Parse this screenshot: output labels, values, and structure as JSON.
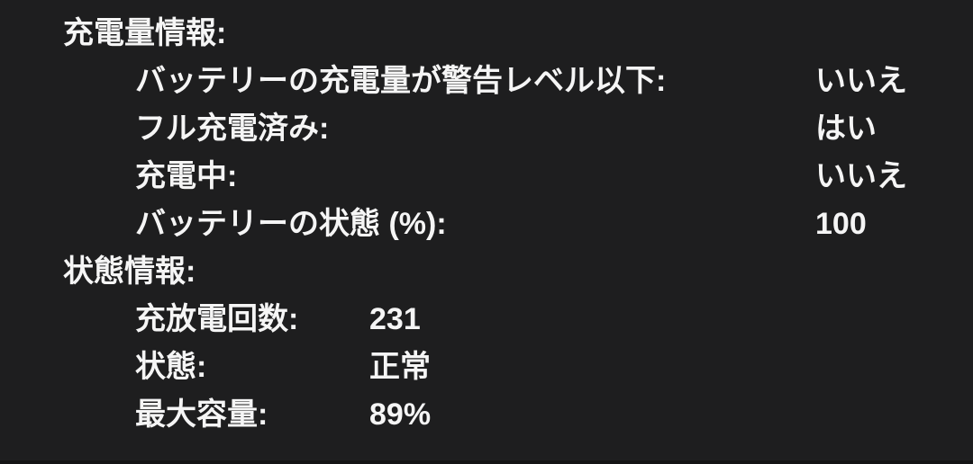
{
  "panel": {
    "bg_color": "#1e1e1f",
    "text_color": "#f5f5f5"
  },
  "sections": [
    {
      "title": "充電量情報:",
      "rows": [
        {
          "label": "バッテリーの充電量が警告レベル以下:",
          "value": "いいえ"
        },
        {
          "label": "フル充電済み:",
          "value": "はい"
        },
        {
          "label": "充電中:",
          "value": "いいえ"
        },
        {
          "label": "バッテリーの状態 (%):",
          "value": "100"
        }
      ]
    },
    {
      "title": "状態情報:",
      "rows": [
        {
          "label": "充放電回数:",
          "value": "231"
        },
        {
          "label": "状態:",
          "value": "正常"
        },
        {
          "label": "最大容量:",
          "value": "89%"
        }
      ]
    }
  ]
}
